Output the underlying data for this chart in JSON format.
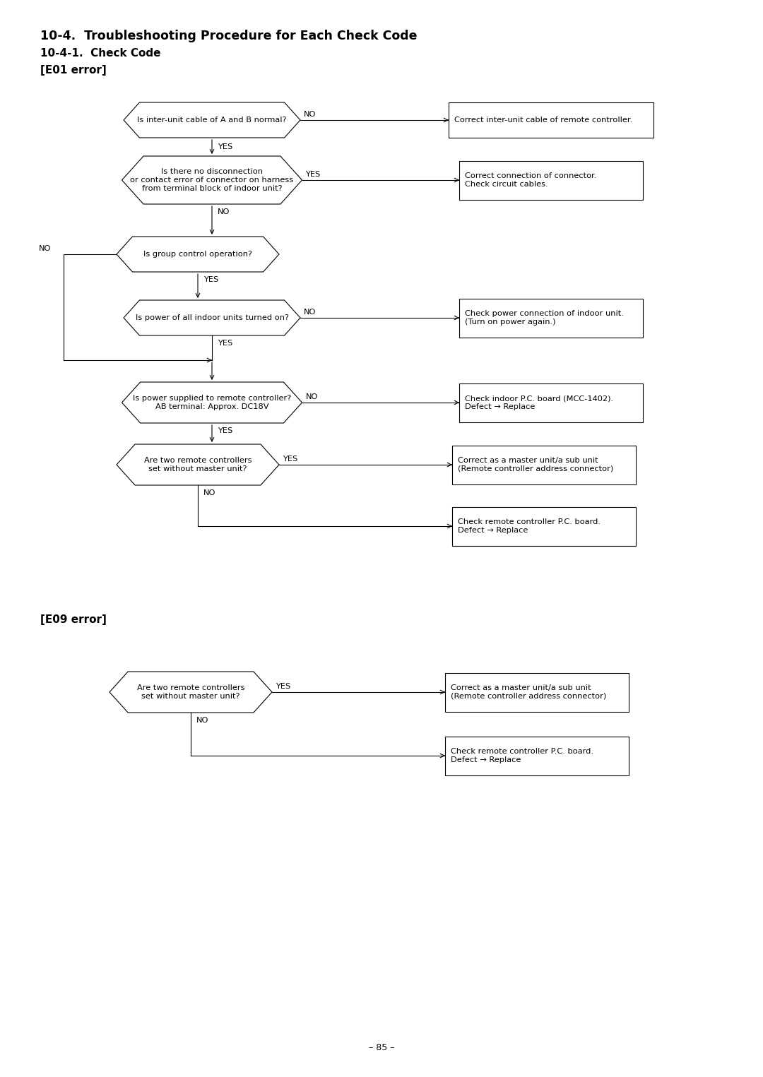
{
  "title1": "10-4.  Troubleshooting Procedure for Each Check Code",
  "title2": "10-4-1.  Check Code",
  "title3": "[E01 error]",
  "title4": "[E09 error]",
  "page": "– 85 –",
  "bg_color": "#ffffff",
  "font_size_title1": 12.5,
  "font_size_title2": 11,
  "font_size_title3": 11,
  "font_size_node": 8.2,
  "font_size_label": 8.2
}
